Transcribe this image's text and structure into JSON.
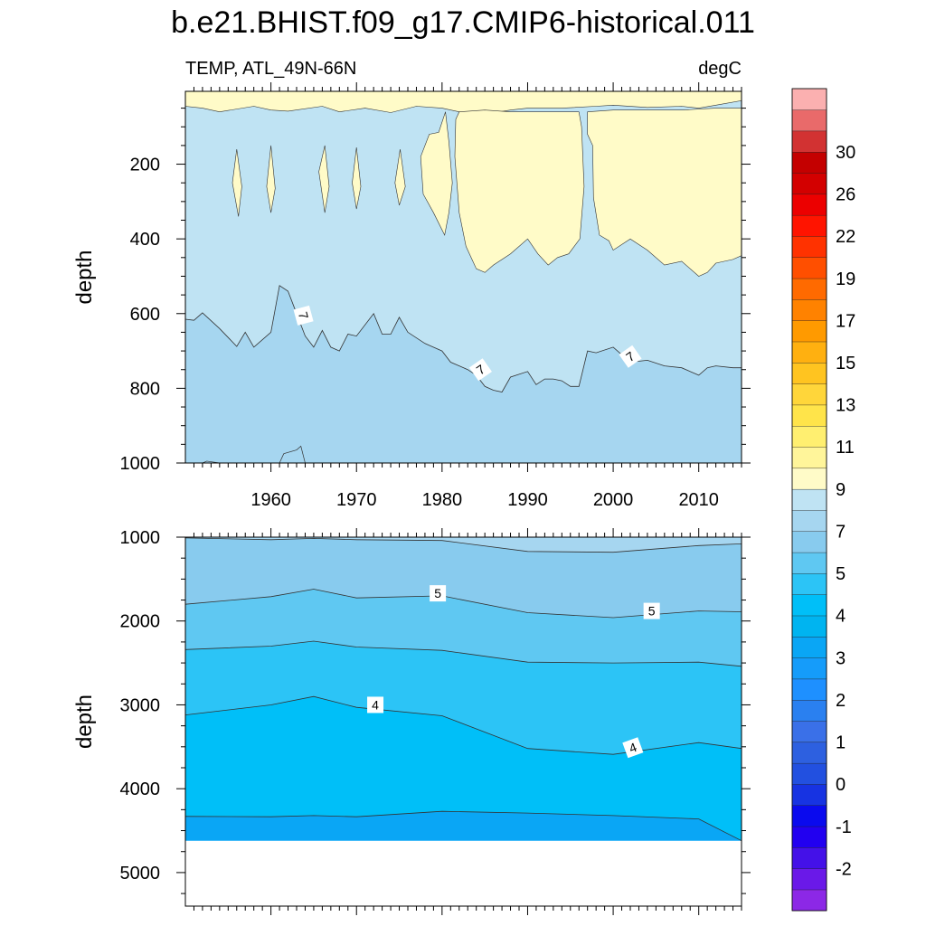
{
  "figure": {
    "title": "b.e21.BHIST.f09_g17.CMIP6-historical.011",
    "left_label": "TEMP, ATL_49N-66N",
    "right_label": "degC"
  },
  "chart_data": [
    {
      "type": "contour",
      "panel": "upper",
      "ylabel": "depth",
      "xlim": [
        1950,
        2015
      ],
      "ylim": [
        1000,
        5
      ],
      "xticks": [
        "1960",
        "1970",
        "1980",
        "1990",
        "2000",
        "2010"
      ],
      "yticks": [
        "200",
        "400",
        "600",
        "800",
        "1000"
      ],
      "contour_labels": [
        "7",
        "7",
        "7"
      ],
      "isotherm_7_depth": {
        "x": [
          1950,
          1951,
          1952,
          1954,
          1956,
          1957,
          1958,
          1960,
          1961,
          1962,
          1963,
          1964,
          1965,
          1966,
          1967,
          1968,
          1969,
          1970,
          1972,
          1973,
          1974,
          1975,
          1976,
          1978,
          1980,
          1981,
          1982,
          1983,
          1984,
          1985,
          1986,
          1987,
          1988,
          1990,
          1991,
          1992,
          1993,
          1994,
          1995,
          1996,
          1997,
          1998,
          2000,
          2002,
          2004,
          2006,
          2008,
          2010,
          2011,
          2012,
          2014,
          2015
        ],
        "y": [
          615,
          618,
          598,
          640,
          688,
          650,
          690,
          650,
          525,
          540,
          600,
          660,
          690,
          645,
          690,
          700,
          655,
          660,
          600,
          655,
          655,
          610,
          650,
          680,
          700,
          730,
          740,
          750,
          765,
          795,
          805,
          810,
          770,
          755,
          790,
          775,
          775,
          780,
          795,
          795,
          700,
          705,
          690,
          730,
          725,
          740,
          745,
          765,
          745,
          740,
          745,
          745
        ]
      },
      "warm_above_9C_regions": [
        "near-surface layer across all years",
        "columns around 1956, 1960, 1966, 1970, 1975",
        "broad region 1977-1996 down to about 490 m",
        "region 1997-2015 down to about 500 m"
      ]
    },
    {
      "type": "contour",
      "panel": "lower",
      "ylabel": "depth",
      "ylim": [
        1000,
        5400
      ],
      "yticks": [
        "1000",
        "2000",
        "3000",
        "4000",
        "5000"
      ],
      "bottom_depth": 4620,
      "contour_labels": [
        "5",
        "5",
        "4",
        "4"
      ],
      "years": [
        1950,
        1960,
        1965,
        1970,
        1980,
        1990,
        2000,
        2010,
        2015
      ],
      "isotherm_6_depth": [
        1010,
        1030,
        1015,
        1030,
        1040,
        1170,
        1180,
        1100,
        1080
      ],
      "isotherm_5_depth": [
        1800,
        1710,
        1620,
        1725,
        1700,
        1900,
        1960,
        1880,
        1890
      ],
      "isotherm_4_5_depth": [
        2340,
        2300,
        2240,
        2310,
        2350,
        2490,
        2500,
        2490,
        2540
      ],
      "isotherm_4_depth": [
        3120,
        3000,
        2900,
        3030,
        3130,
        3520,
        3590,
        3450,
        3520
      ],
      "isotherm_3_5_depth": [
        4330,
        4335,
        4320,
        4335,
        4270,
        4290,
        4320,
        4360,
        4620
      ]
    },
    {
      "type": "colorbar",
      "unit": "degC",
      "levels": [
        -3,
        -2.5,
        -2,
        -1.5,
        -1,
        -0.5,
        0,
        0.5,
        1,
        1.5,
        2,
        2.5,
        3,
        3.5,
        4,
        4.5,
        5,
        6,
        7,
        8,
        9,
        10,
        11,
        12,
        13,
        14,
        15,
        16,
        17,
        18,
        19,
        20,
        22,
        24,
        26,
        28,
        30,
        32
      ],
      "colors": [
        "#8c28e6",
        "#6a19e8",
        "#4411e8",
        "#2200f0",
        "#0a0aee",
        "#1733e2",
        "#2250e0",
        "#2d60e0",
        "#3a70e8",
        "#2a80f0",
        "#1e90ff",
        "#159cfa",
        "#0aa6f5",
        "#00b4f0",
        "#00bff8",
        "#2cc4f6",
        "#5fc8f2",
        "#88cbee",
        "#a6d6f0",
        "#bfe3f3",
        "#fffbc8",
        "#fff59a",
        "#ffef70",
        "#ffe44a",
        "#ffd63a",
        "#ffc420",
        "#ffb010",
        "#ff9a00",
        "#ff8200",
        "#ff6a00",
        "#ff4f00",
        "#ff3200",
        "#ff1400",
        "#ec0000",
        "#d30000",
        "#c40000",
        "#d23232",
        "#e96a6a",
        "#fbb0b0"
      ],
      "tick_labels": [
        "-2",
        "-1",
        "0",
        "1",
        "2",
        "3",
        "4",
        "5",
        "7",
        "9",
        "11",
        "13",
        "15",
        "17",
        "19",
        "22",
        "26",
        "30"
      ]
    }
  ]
}
